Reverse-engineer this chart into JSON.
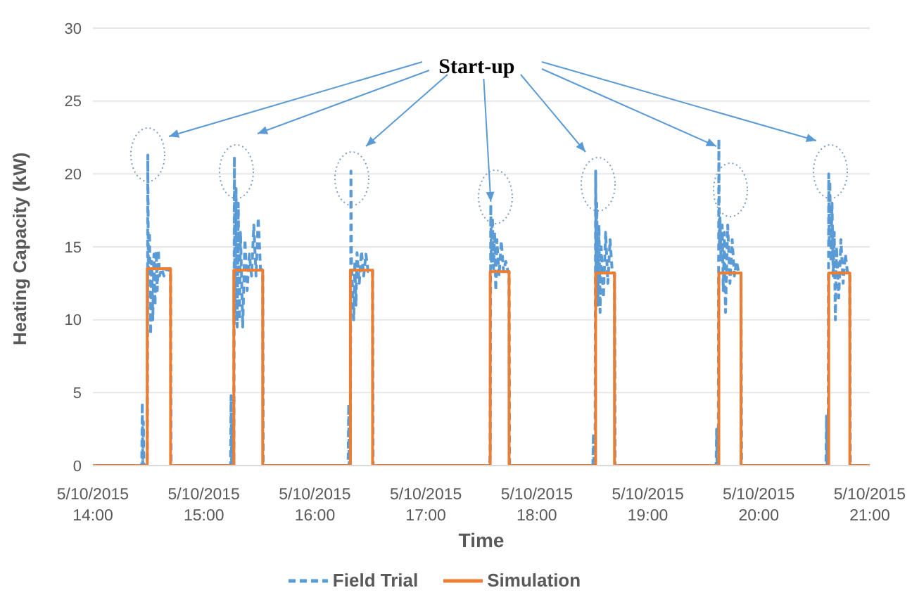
{
  "chart_data": {
    "type": "line",
    "xlabel": "Time",
    "ylabel": "Heating Capacity (kW)",
    "annotations": [
      {
        "text": "Start-up",
        "x": "2015-05-10T17:35:06",
        "y": 17.9
      }
    ],
    "xlim": [
      "2015-05-10T14:00",
      "2015-05-10T21:00"
    ],
    "xticks": [
      {
        "value": "2015-05-10T14:00",
        "label": "5/10/2015 14:00"
      },
      {
        "value": "2015-05-10T15:00",
        "label": "5/10/2015 15:00"
      },
      {
        "value": "2015-05-10T16:00",
        "label": "5/10/2015 16:00"
      },
      {
        "value": "2015-05-10T17:00",
        "label": "5/10/2015 17:00"
      },
      {
        "value": "2015-05-10T18:00",
        "label": "5/10/2015 18:00"
      },
      {
        "value": "2015-05-10T19:00",
        "label": "5/10/2015 19:00"
      },
      {
        "value": "2015-05-10T20:00",
        "label": "5/10/2015 20:00"
      },
      {
        "value": "2015-05-10T21:00",
        "label": "5/10/2015 21:00"
      }
    ],
    "ylim": [
      0,
      30
    ],
    "yticks": [
      0,
      5,
      10,
      15,
      20,
      25,
      30
    ],
    "grid": "y",
    "legend": "bottom",
    "marker": "none",
    "series": [
      {
        "name": "Field Trial",
        "color": "#5b9bd5",
        "line_style": "dashed",
        "x": [
          "2015-05-10T14:00:00",
          "2015-05-10T14:26:24",
          "2015-05-10T14:26:42",
          "2015-05-10T14:27:00",
          "2015-05-10T14:27:18",
          "2015-05-10T14:27:36",
          "2015-05-10T14:29:24",
          "2015-05-10T14:29:42",
          "2015-05-10T14:30:00",
          "2015-05-10T14:30:36",
          "2015-05-10T14:31:12",
          "2015-05-10T14:31:48",
          "2015-05-10T14:32:24",
          "2015-05-10T14:33:00",
          "2015-05-10T14:33:36",
          "2015-05-10T14:34:12",
          "2015-05-10T14:34:48",
          "2015-05-10T14:35:24",
          "2015-05-10T14:36:00",
          "2015-05-10T14:37:12",
          "2015-05-10T14:38:24",
          "2015-05-10T14:39:36",
          "2015-05-10T14:40:48",
          "2015-05-10T14:42:00",
          "2015-05-10T14:42:18",
          "2015-05-10T15:13:12",
          "2015-05-10T15:14:24",
          "2015-05-10T15:14:42",
          "2015-05-10T15:15:00",
          "2015-05-10T15:15:36",
          "2015-05-10T15:16:12",
          "2015-05-10T15:16:30",
          "2015-05-10T15:16:48",
          "2015-05-10T15:17:24",
          "2015-05-10T15:18:00",
          "2015-05-10T15:18:36",
          "2015-05-10T15:19:12",
          "2015-05-10T15:19:48",
          "2015-05-10T15:21:00",
          "2015-05-10T15:22:12",
          "2015-05-10T15:23:24",
          "2015-05-10T15:24:36",
          "2015-05-10T15:25:48",
          "2015-05-10T15:27:00",
          "2015-05-10T15:28:12",
          "2015-05-10T15:29:24",
          "2015-05-10T15:30:36",
          "2015-05-10T15:31:48",
          "2015-05-10T15:32:06",
          "2015-05-10T16:16:12",
          "2015-05-10T16:18:00",
          "2015-05-10T16:18:18",
          "2015-05-10T16:18:36",
          "2015-05-10T16:18:54",
          "2015-05-10T16:19:12",
          "2015-05-10T16:19:30",
          "2015-05-10T16:19:48",
          "2015-05-10T16:20:24",
          "2015-05-10T16:21:00",
          "2015-05-10T16:21:36",
          "2015-05-10T16:22:12",
          "2015-05-10T16:22:48",
          "2015-05-10T16:24:00",
          "2015-05-10T16:25:12",
          "2015-05-10T16:26:24",
          "2015-05-10T16:27:36",
          "2015-05-10T16:28:48",
          "2015-05-10T16:30:00",
          "2015-05-10T16:31:12",
          "2015-05-10T16:31:30",
          "2015-05-10T17:33:36",
          "2015-05-10T17:34:30",
          "2015-05-10T17:34:48",
          "2015-05-10T17:35:06",
          "2015-05-10T17:35:24",
          "2015-05-10T17:36:00",
          "2015-05-10T17:36:36",
          "2015-05-10T17:37:12",
          "2015-05-10T17:37:48",
          "2015-05-10T17:38:24",
          "2015-05-10T17:39:36",
          "2015-05-10T17:40:48",
          "2015-05-10T17:42:00",
          "2015-05-10T17:43:12",
          "2015-05-10T17:44:24",
          "2015-05-10T17:45:00",
          "2015-05-10T17:45:18",
          "2015-05-10T18:28:48",
          "2015-05-10T18:30:18",
          "2015-05-10T18:30:36",
          "2015-05-10T18:30:54",
          "2015-05-10T18:31:30",
          "2015-05-10T18:31:48",
          "2015-05-10T18:32:06",
          "2015-05-10T18:32:24",
          "2015-05-10T18:33:00",
          "2015-05-10T18:33:36",
          "2015-05-10T18:34:12",
          "2015-05-10T18:34:48",
          "2015-05-10T18:36:00",
          "2015-05-10T18:37:12",
          "2015-05-10T18:38:24",
          "2015-05-10T18:39:36",
          "2015-05-10T18:40:48",
          "2015-05-10T18:42:00",
          "2015-05-10T18:42:18",
          "2015-05-10T19:35:24",
          "2015-05-10T19:36:54",
          "2015-05-10T19:37:12",
          "2015-05-10T19:37:30",
          "2015-05-10T19:38:06",
          "2015-05-10T19:38:24",
          "2015-05-10T19:38:42",
          "2015-05-10T19:39:00",
          "2015-05-10T19:39:36",
          "2015-05-10T19:40:12",
          "2015-05-10T19:40:48",
          "2015-05-10T19:41:24",
          "2015-05-10T19:42:00",
          "2015-05-10T19:43:12",
          "2015-05-10T19:44:24",
          "2015-05-10T19:45:36",
          "2015-05-10T19:46:48",
          "2015-05-10T19:48:00",
          "2015-05-10T19:49:12",
          "2015-05-10T19:50:24",
          "2015-05-10T19:50:42",
          "2015-05-10T20:34:48",
          "2015-05-10T20:36:18",
          "2015-05-10T20:36:36",
          "2015-05-10T20:36:54",
          "2015-05-10T20:37:30",
          "2015-05-10T20:37:48",
          "2015-05-10T20:38:06",
          "2015-05-10T20:38:24",
          "2015-05-10T20:39:00",
          "2015-05-10T20:39:36",
          "2015-05-10T20:40:12",
          "2015-05-10T20:40:48",
          "2015-05-10T20:41:24",
          "2015-05-10T20:42:00",
          "2015-05-10T20:43:12",
          "2015-05-10T20:44:24",
          "2015-05-10T20:45:36",
          "2015-05-10T20:46:48",
          "2015-05-10T20:48:00",
          "2015-05-10T20:49:12",
          "2015-05-10T20:49:30",
          "2015-05-10T21:00:00"
        ],
        "values": [
          0,
          0,
          4.3,
          0,
          3,
          0,
          0,
          21.3,
          13,
          16,
          9,
          14,
          10,
          14.5,
          11,
          14.7,
          12,
          14.8,
          13,
          13.5,
          13,
          13.5,
          13.4,
          13.4,
          0,
          0,
          0,
          4.8,
          0,
          3,
          0,
          21.2,
          10,
          19,
          9.5,
          18,
          10,
          16,
          9.5,
          15.5,
          12,
          14.5,
          13,
          16.5,
          13,
          17,
          13.5,
          13.4,
          0,
          0,
          0,
          4.2,
          0,
          3,
          0,
          20.2,
          14,
          12,
          10,
          14,
          11,
          14.6,
          12.5,
          14.7,
          13,
          14.5,
          13.3,
          13.4,
          13.4,
          0,
          0,
          0,
          1,
          17.9,
          14,
          17,
          13.5,
          16,
          12,
          15.5,
          13,
          15.4,
          13.3,
          14,
          13.3,
          13.3,
          0,
          0,
          0,
          2.2,
          0,
          0,
          20.2,
          12,
          18,
          11,
          16.5,
          10.5,
          15,
          11.5,
          16,
          12.5,
          15.5,
          13.2,
          13.2,
          0,
          0,
          0,
          2.5,
          0,
          0,
          22.4,
          15,
          17,
          14,
          16.5,
          12,
          16,
          10.5,
          16.5,
          12.5,
          15.5,
          13,
          14,
          13.2,
          13.2,
          0,
          0,
          0,
          3.4,
          0,
          0,
          20,
          15,
          19.5,
          14,
          18,
          13,
          16,
          10,
          15,
          11.5,
          15.5,
          12.5,
          14.5,
          13.2,
          13.2,
          0,
          0
        ]
      },
      {
        "name": "Simulation",
        "color": "#ed7d31",
        "line_style": "solid",
        "x": [
          "2015-05-10T14:00:00",
          "2015-05-10T14:29:24",
          "2015-05-10T14:29:24",
          "2015-05-10T14:42:00",
          "2015-05-10T14:42:00",
          "2015-05-10T15:16:12",
          "2015-05-10T15:16:12",
          "2015-05-10T15:31:48",
          "2015-05-10T15:31:48",
          "2015-05-10T16:19:12",
          "2015-05-10T16:19:12",
          "2015-05-10T16:31:12",
          "2015-05-10T16:31:12",
          "2015-05-10T17:34:48",
          "2015-05-10T17:34:48",
          "2015-05-10T17:45:00",
          "2015-05-10T17:45:00",
          "2015-05-10T18:31:48",
          "2015-05-10T18:31:48",
          "2015-05-10T18:42:00",
          "2015-05-10T18:42:00",
          "2015-05-10T19:38:24",
          "2015-05-10T19:38:24",
          "2015-05-10T19:50:24",
          "2015-05-10T19:50:24",
          "2015-05-10T20:37:48",
          "2015-05-10T20:37:48",
          "2015-05-10T20:49:12",
          "2015-05-10T20:49:12",
          "2015-05-10T21:00:00"
        ],
        "values": [
          0,
          0,
          13.5,
          13.5,
          0,
          0,
          13.4,
          13.4,
          0,
          0,
          13.4,
          13.4,
          0,
          0,
          13.3,
          13.3,
          0,
          0,
          13.2,
          13.2,
          0,
          0,
          13.2,
          13.2,
          0,
          0,
          13.2,
          13.2,
          0,
          0
        ]
      }
    ]
  }
}
